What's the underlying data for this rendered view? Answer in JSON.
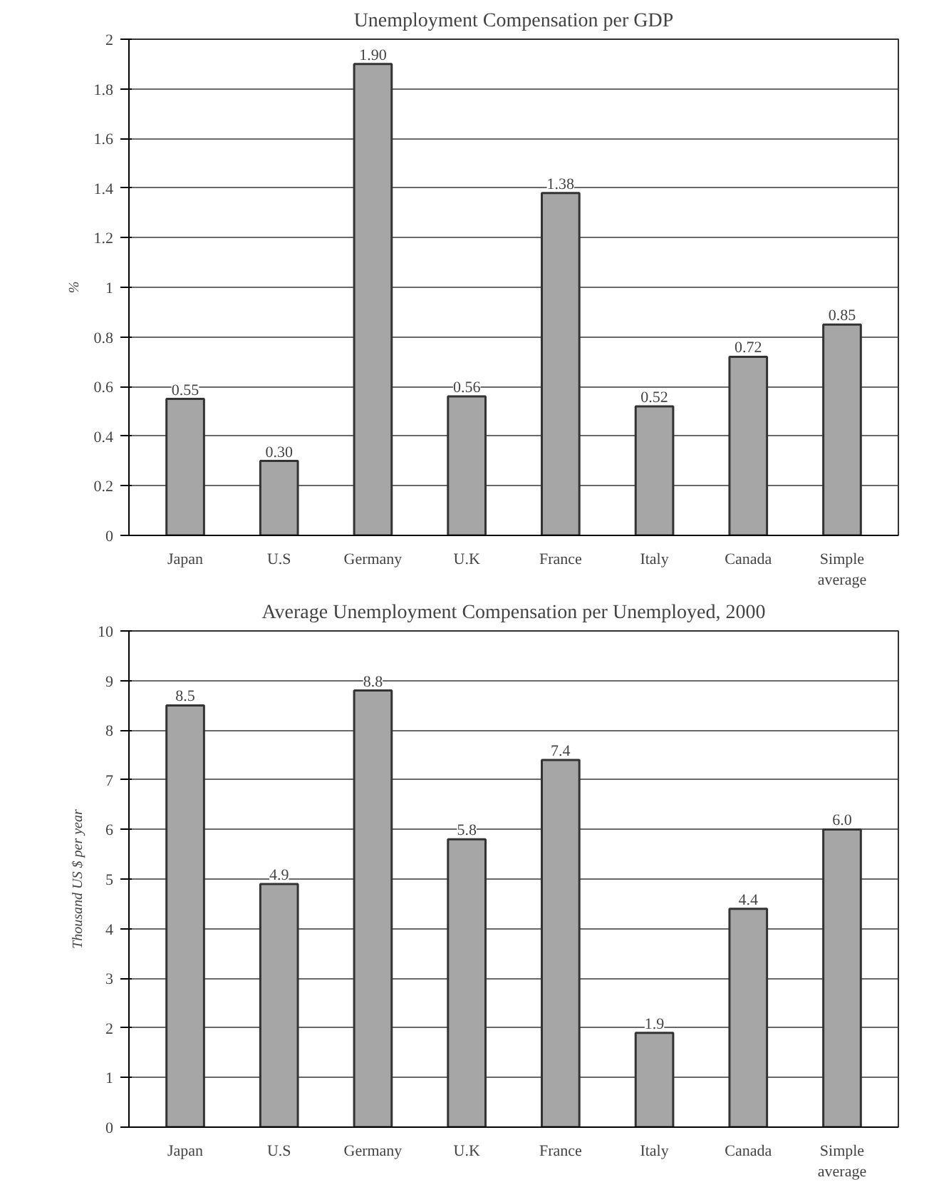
{
  "chart_data": [
    {
      "type": "bar",
      "title": "Unemployment Compensation per GDP",
      "ylabel": "%",
      "categories": [
        "Japan",
        "U.S",
        "Germany",
        "U.K",
        "France",
        "Italy",
        "Canada",
        "Simple average"
      ],
      "values": [
        0.55,
        0.3,
        1.9,
        0.56,
        1.38,
        0.52,
        0.72,
        0.85
      ],
      "value_labels": [
        "0.55",
        "0.30",
        "1.90",
        "0.56",
        "1.38",
        "0.52",
        "0.72",
        "0.85"
      ],
      "color": "#a6a6a6",
      "ylim": [
        0,
        2
      ],
      "yticks": [
        0,
        0.2,
        0.4,
        0.6,
        0.8,
        1,
        1.2,
        1.4,
        1.6,
        1.8,
        2
      ],
      "grid": "y"
    },
    {
      "type": "bar",
      "title": "Average Unemployment Compensation per Unemployed, 2000",
      "ylabel": "Thousand US $ per year",
      "categories": [
        "Japan",
        "U.S",
        "Germany",
        "U.K",
        "France",
        "Italy",
        "Canada",
        "Simple average"
      ],
      "values": [
        8.5,
        4.9,
        8.8,
        5.8,
        7.4,
        1.9,
        4.4,
        6.0
      ],
      "value_labels": [
        "8.5",
        "4.9",
        "8.8",
        "5.8",
        "7.4",
        "1.9",
        "4.4",
        "6.0"
      ],
      "color": "#a6a6a6",
      "ylim": [
        0,
        10
      ],
      "yticks": [
        0,
        1,
        2,
        3,
        4,
        5,
        6,
        7,
        8,
        9,
        10
      ],
      "grid": "y"
    }
  ]
}
